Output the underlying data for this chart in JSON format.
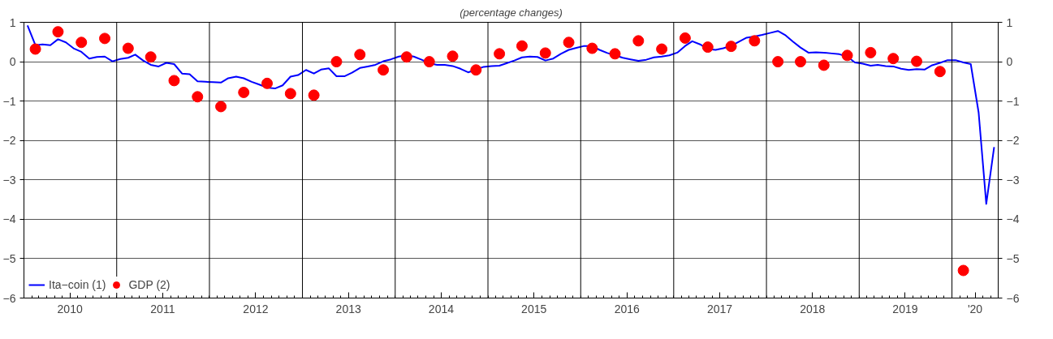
{
  "chart_data": {
    "type": "line",
    "title": "(percentage changes)",
    "xlim": [
      "2010-01-01",
      "2020-07-01"
    ],
    "xticks": [
      {
        "value": "2010-02-01",
        "label": null
      },
      {
        "value": "2010-03-01",
        "label": null
      },
      {
        "value": "2010-04-01",
        "label": null
      },
      {
        "value": "2010-05-01",
        "label": null
      },
      {
        "value": "2010-06-01",
        "label": null
      },
      {
        "value": "2010-07-01",
        "label": "2010"
      },
      {
        "value": "2010-08-01",
        "label": null
      },
      {
        "value": "2010-09-01",
        "label": null
      },
      {
        "value": "2010-10-01",
        "label": null
      },
      {
        "value": "2010-11-01",
        "label": null
      },
      {
        "value": "2010-12-01",
        "label": null
      },
      {
        "value": "2011-01-01",
        "label": null
      },
      {
        "value": "2011-02-01",
        "label": null
      },
      {
        "value": "2011-03-01",
        "label": null
      },
      {
        "value": "2011-04-01",
        "label": null
      },
      {
        "value": "2011-05-01",
        "label": null
      },
      {
        "value": "2011-06-01",
        "label": null
      },
      {
        "value": "2011-07-01",
        "label": "2011"
      },
      {
        "value": "2011-08-01",
        "label": null
      },
      {
        "value": "2011-09-01",
        "label": null
      },
      {
        "value": "2011-10-01",
        "label": null
      },
      {
        "value": "2011-11-01",
        "label": null
      },
      {
        "value": "2011-12-01",
        "label": null
      },
      {
        "value": "2012-01-01",
        "label": null
      },
      {
        "value": "2012-02-01",
        "label": null
      },
      {
        "value": "2012-03-01",
        "label": null
      },
      {
        "value": "2012-04-01",
        "label": null
      },
      {
        "value": "2012-05-01",
        "label": null
      },
      {
        "value": "2012-06-01",
        "label": null
      },
      {
        "value": "2012-07-01",
        "label": "2012"
      },
      {
        "value": "2012-08-01",
        "label": null
      },
      {
        "value": "2012-09-01",
        "label": null
      },
      {
        "value": "2012-10-01",
        "label": null
      },
      {
        "value": "2012-11-01",
        "label": null
      },
      {
        "value": "2012-12-01",
        "label": null
      },
      {
        "value": "2013-01-01",
        "label": null
      },
      {
        "value": "2013-02-01",
        "label": null
      },
      {
        "value": "2013-03-01",
        "label": null
      },
      {
        "value": "2013-04-01",
        "label": null
      },
      {
        "value": "2013-05-01",
        "label": null
      },
      {
        "value": "2013-06-01",
        "label": null
      },
      {
        "value": "2013-07-01",
        "label": "2013"
      },
      {
        "value": "2013-08-01",
        "label": null
      },
      {
        "value": "2013-09-01",
        "label": null
      },
      {
        "value": "2013-10-01",
        "label": null
      },
      {
        "value": "2013-11-01",
        "label": null
      },
      {
        "value": "2013-12-01",
        "label": null
      },
      {
        "value": "2014-01-01",
        "label": null
      },
      {
        "value": "2014-02-01",
        "label": null
      },
      {
        "value": "2014-03-01",
        "label": null
      },
      {
        "value": "2014-04-01",
        "label": null
      },
      {
        "value": "2014-05-01",
        "label": null
      },
      {
        "value": "2014-06-01",
        "label": null
      },
      {
        "value": "2014-07-01",
        "label": "2014"
      },
      {
        "value": "2014-08-01",
        "label": null
      },
      {
        "value": "2014-09-01",
        "label": null
      },
      {
        "value": "2014-10-01",
        "label": null
      },
      {
        "value": "2014-11-01",
        "label": null
      },
      {
        "value": "2014-12-01",
        "label": null
      },
      {
        "value": "2015-01-01",
        "label": null
      },
      {
        "value": "2015-02-01",
        "label": null
      },
      {
        "value": "2015-03-01",
        "label": null
      },
      {
        "value": "2015-04-01",
        "label": null
      },
      {
        "value": "2015-05-01",
        "label": null
      },
      {
        "value": "2015-06-01",
        "label": null
      },
      {
        "value": "2015-07-01",
        "label": "2015"
      },
      {
        "value": "2015-08-01",
        "label": null
      },
      {
        "value": "2015-09-01",
        "label": null
      },
      {
        "value": "2015-10-01",
        "label": null
      },
      {
        "value": "2015-11-01",
        "label": null
      },
      {
        "value": "2015-12-01",
        "label": null
      },
      {
        "value": "2016-01-01",
        "label": null
      },
      {
        "value": "2016-02-01",
        "label": null
      },
      {
        "value": "2016-03-01",
        "label": null
      },
      {
        "value": "2016-04-01",
        "label": null
      },
      {
        "value": "2016-05-01",
        "label": null
      },
      {
        "value": "2016-06-01",
        "label": null
      },
      {
        "value": "2016-07-01",
        "label": "2016"
      },
      {
        "value": "2016-08-01",
        "label": null
      },
      {
        "value": "2016-09-01",
        "label": null
      },
      {
        "value": "2016-10-01",
        "label": null
      },
      {
        "value": "2016-11-01",
        "label": null
      },
      {
        "value": "2016-12-01",
        "label": null
      },
      {
        "value": "2017-01-01",
        "label": null
      },
      {
        "value": "2017-02-01",
        "label": null
      },
      {
        "value": "2017-03-01",
        "label": null
      },
      {
        "value": "2017-04-01",
        "label": null
      },
      {
        "value": "2017-05-01",
        "label": null
      },
      {
        "value": "2017-06-01",
        "label": null
      },
      {
        "value": "2017-07-01",
        "label": "2017"
      },
      {
        "value": "2017-08-01",
        "label": null
      },
      {
        "value": "2017-09-01",
        "label": null
      },
      {
        "value": "2017-10-01",
        "label": null
      },
      {
        "value": "2017-11-01",
        "label": null
      },
      {
        "value": "2017-12-01",
        "label": null
      },
      {
        "value": "2018-01-01",
        "label": null
      },
      {
        "value": "2018-02-01",
        "label": null
      },
      {
        "value": "2018-03-01",
        "label": null
      },
      {
        "value": "2018-04-01",
        "label": null
      },
      {
        "value": "2018-05-01",
        "label": null
      },
      {
        "value": "2018-06-01",
        "label": null
      },
      {
        "value": "2018-07-01",
        "label": "2018"
      },
      {
        "value": "2018-08-01",
        "label": null
      },
      {
        "value": "2018-09-01",
        "label": null
      },
      {
        "value": "2018-10-01",
        "label": null
      },
      {
        "value": "2018-11-01",
        "label": null
      },
      {
        "value": "2018-12-01",
        "label": null
      },
      {
        "value": "2019-01-01",
        "label": null
      },
      {
        "value": "2019-02-01",
        "label": null
      },
      {
        "value": "2019-03-01",
        "label": null
      },
      {
        "value": "2019-04-01",
        "label": null
      },
      {
        "value": "2019-05-01",
        "label": null
      },
      {
        "value": "2019-06-01",
        "label": null
      },
      {
        "value": "2019-07-01",
        "label": "2019"
      },
      {
        "value": "2019-08-01",
        "label": null
      },
      {
        "value": "2019-09-01",
        "label": null
      },
      {
        "value": "2019-10-01",
        "label": null
      },
      {
        "value": "2019-11-01",
        "label": null
      },
      {
        "value": "2019-12-01",
        "label": null
      },
      {
        "value": "2020-01-01",
        "label": null
      },
      {
        "value": "2020-02-01",
        "label": null
      },
      {
        "value": "2020-03-01",
        "label": null
      },
      {
        "value": "2020-04-01",
        "label": "'20"
      },
      {
        "value": "2020-05-01",
        "label": null
      },
      {
        "value": "2020-06-01",
        "label": null
      }
    ],
    "ylim": [
      -6,
      1
    ],
    "yticks": [
      -6,
      -5,
      -4,
      -3,
      -2,
      -1,
      0,
      1
    ],
    "y2lim": [
      -6,
      1
    ],
    "y2ticks": [
      -6,
      -5,
      -4,
      -3,
      -2,
      -1,
      0,
      1
    ],
    "grid": "y",
    "legend": "bottom left",
    "ref_lines": [
      {
        "axis": "x",
        "value": "2011-01-01",
        "color": "#000000"
      },
      {
        "axis": "x",
        "value": "2012-01-01",
        "color": "#000000"
      },
      {
        "axis": "x",
        "value": "2013-01-01",
        "color": "#000000"
      },
      {
        "axis": "x",
        "value": "2014-01-01",
        "color": "#000000"
      },
      {
        "axis": "x",
        "value": "2015-01-01",
        "color": "#000000"
      },
      {
        "axis": "x",
        "value": "2016-01-01",
        "color": "#000000"
      },
      {
        "axis": "x",
        "value": "2017-01-01",
        "color": "#000000"
      },
      {
        "axis": "x",
        "value": "2018-01-01",
        "color": "#000000"
      },
      {
        "axis": "x",
        "value": "2019-01-01",
        "color": "#000000"
      },
      {
        "axis": "x",
        "value": "2020-01-01",
        "color": "#000000"
      }
    ],
    "series": [
      {
        "name": "Ita−coin (1)",
        "color": "#0000ff",
        "marker": "none",
        "line_style": "solid",
        "x": [
          "2010-01",
          "2010-02",
          "2010-03",
          "2010-04",
          "2010-05",
          "2010-06",
          "2010-07",
          "2010-08",
          "2010-09",
          "2010-10",
          "2010-11",
          "2010-12",
          "2011-01",
          "2011-02",
          "2011-03",
          "2011-04",
          "2011-05",
          "2011-06",
          "2011-07",
          "2011-08",
          "2011-09",
          "2011-10",
          "2011-11",
          "2011-12",
          "2012-01",
          "2012-02",
          "2012-03",
          "2012-04",
          "2012-05",
          "2012-06",
          "2012-07",
          "2012-08",
          "2012-09",
          "2012-10",
          "2012-11",
          "2012-12",
          "2013-01",
          "2013-02",
          "2013-03",
          "2013-04",
          "2013-05",
          "2013-06",
          "2013-07",
          "2013-08",
          "2013-09",
          "2013-10",
          "2013-11",
          "2013-12",
          "2014-01",
          "2014-02",
          "2014-03",
          "2014-04",
          "2014-05",
          "2014-06",
          "2014-07",
          "2014-08",
          "2014-09",
          "2014-10",
          "2014-11",
          "2014-12",
          "2015-01",
          "2015-02",
          "2015-03",
          "2015-04",
          "2015-05",
          "2015-06",
          "2015-07",
          "2015-08",
          "2015-09",
          "2015-10",
          "2015-11",
          "2015-12",
          "2016-01",
          "2016-02",
          "2016-03",
          "2016-04",
          "2016-05",
          "2016-06",
          "2016-07",
          "2016-08",
          "2016-09",
          "2016-10",
          "2016-11",
          "2016-12",
          "2017-01",
          "2017-02",
          "2017-03",
          "2017-04",
          "2017-05",
          "2017-06",
          "2017-07",
          "2017-08",
          "2017-09",
          "2017-10",
          "2017-11",
          "2017-12",
          "2018-01",
          "2018-02",
          "2018-03",
          "2018-04",
          "2018-05",
          "2018-06",
          "2018-07",
          "2018-08",
          "2018-09",
          "2018-10",
          "2018-11",
          "2018-12",
          "2019-01",
          "2019-02",
          "2019-03",
          "2019-04",
          "2019-05",
          "2019-06",
          "2019-07",
          "2019-08",
          "2019-09",
          "2019-10",
          "2019-11",
          "2019-12",
          "2020-01",
          "2020-02",
          "2020-03",
          "2020-04",
          "2020-05",
          "2020-06"
        ],
        "values": [
          0.92,
          0.42,
          0.44,
          0.42,
          0.57,
          0.49,
          0.34,
          0.25,
          0.08,
          0.12,
          0.13,
          0.01,
          0.07,
          0.1,
          0.18,
          0.03,
          -0.08,
          -0.12,
          -0.03,
          -0.06,
          -0.3,
          -0.32,
          -0.5,
          -0.51,
          -0.52,
          -0.53,
          -0.42,
          -0.38,
          -0.42,
          -0.51,
          -0.58,
          -0.66,
          -0.68,
          -0.6,
          -0.38,
          -0.34,
          -0.21,
          -0.3,
          -0.2,
          -0.17,
          -0.37,
          -0.37,
          -0.28,
          -0.16,
          -0.12,
          -0.08,
          0.01,
          0.06,
          0.13,
          0.16,
          0.13,
          0.05,
          -0.04,
          -0.08,
          -0.08,
          -0.11,
          -0.18,
          -0.27,
          -0.2,
          -0.13,
          -0.11,
          -0.1,
          -0.04,
          0.03,
          0.11,
          0.13,
          0.12,
          0.03,
          0.08,
          0.2,
          0.3,
          0.35,
          0.4,
          0.4,
          0.3,
          0.22,
          0.16,
          0.1,
          0.06,
          0.02,
          0.05,
          0.11,
          0.13,
          0.16,
          0.23,
          0.4,
          0.52,
          0.44,
          0.32,
          0.3,
          0.34,
          0.4,
          0.51,
          0.61,
          0.64,
          0.68,
          0.73,
          0.78,
          0.68,
          0.51,
          0.36,
          0.23,
          0.24,
          0.23,
          0.21,
          0.19,
          0.13,
          -0.02,
          -0.05,
          -0.1,
          -0.08,
          -0.11,
          -0.12,
          -0.18,
          -0.21,
          -0.19,
          -0.2,
          -0.09,
          -0.03,
          0.04,
          0.04,
          -0.02,
          -0.06,
          -1.29,
          -3.61,
          -2.17
        ]
      },
      {
        "name": "GDP (2)",
        "type": "scatter",
        "color": "#ff0000",
        "marker": "circle",
        "x": [
          "2010-02",
          "2010-05",
          "2010-08",
          "2010-11",
          "2011-02",
          "2011-05",
          "2011-08",
          "2011-11",
          "2012-02",
          "2012-05",
          "2012-08",
          "2012-11",
          "2013-02",
          "2013-05",
          "2013-08",
          "2013-11",
          "2014-02",
          "2014-05",
          "2014-08",
          "2014-11",
          "2015-02",
          "2015-05",
          "2015-08",
          "2015-11",
          "2016-02",
          "2016-05",
          "2016-08",
          "2016-11",
          "2017-02",
          "2017-05",
          "2017-08",
          "2017-11",
          "2018-02",
          "2018-05",
          "2018-08",
          "2018-11",
          "2019-02",
          "2019-05",
          "2019-08",
          "2019-11",
          "2020-02"
        ],
        "values": [
          0.32,
          0.76,
          0.49,
          0.59,
          0.34,
          0.12,
          -0.48,
          -0.89,
          -1.14,
          -0.78,
          -0.55,
          -0.81,
          -0.85,
          0.0,
          0.18,
          -0.21,
          0.12,
          0.0,
          0.14,
          -0.21,
          0.2,
          0.4,
          0.22,
          0.49,
          0.34,
          0.2,
          0.53,
          0.32,
          0.6,
          0.37,
          0.39,
          0.53,
          0.0,
          0.0,
          -0.09,
          0.16,
          0.23,
          0.08,
          0.01,
          -0.25,
          -5.3
        ]
      }
    ]
  }
}
